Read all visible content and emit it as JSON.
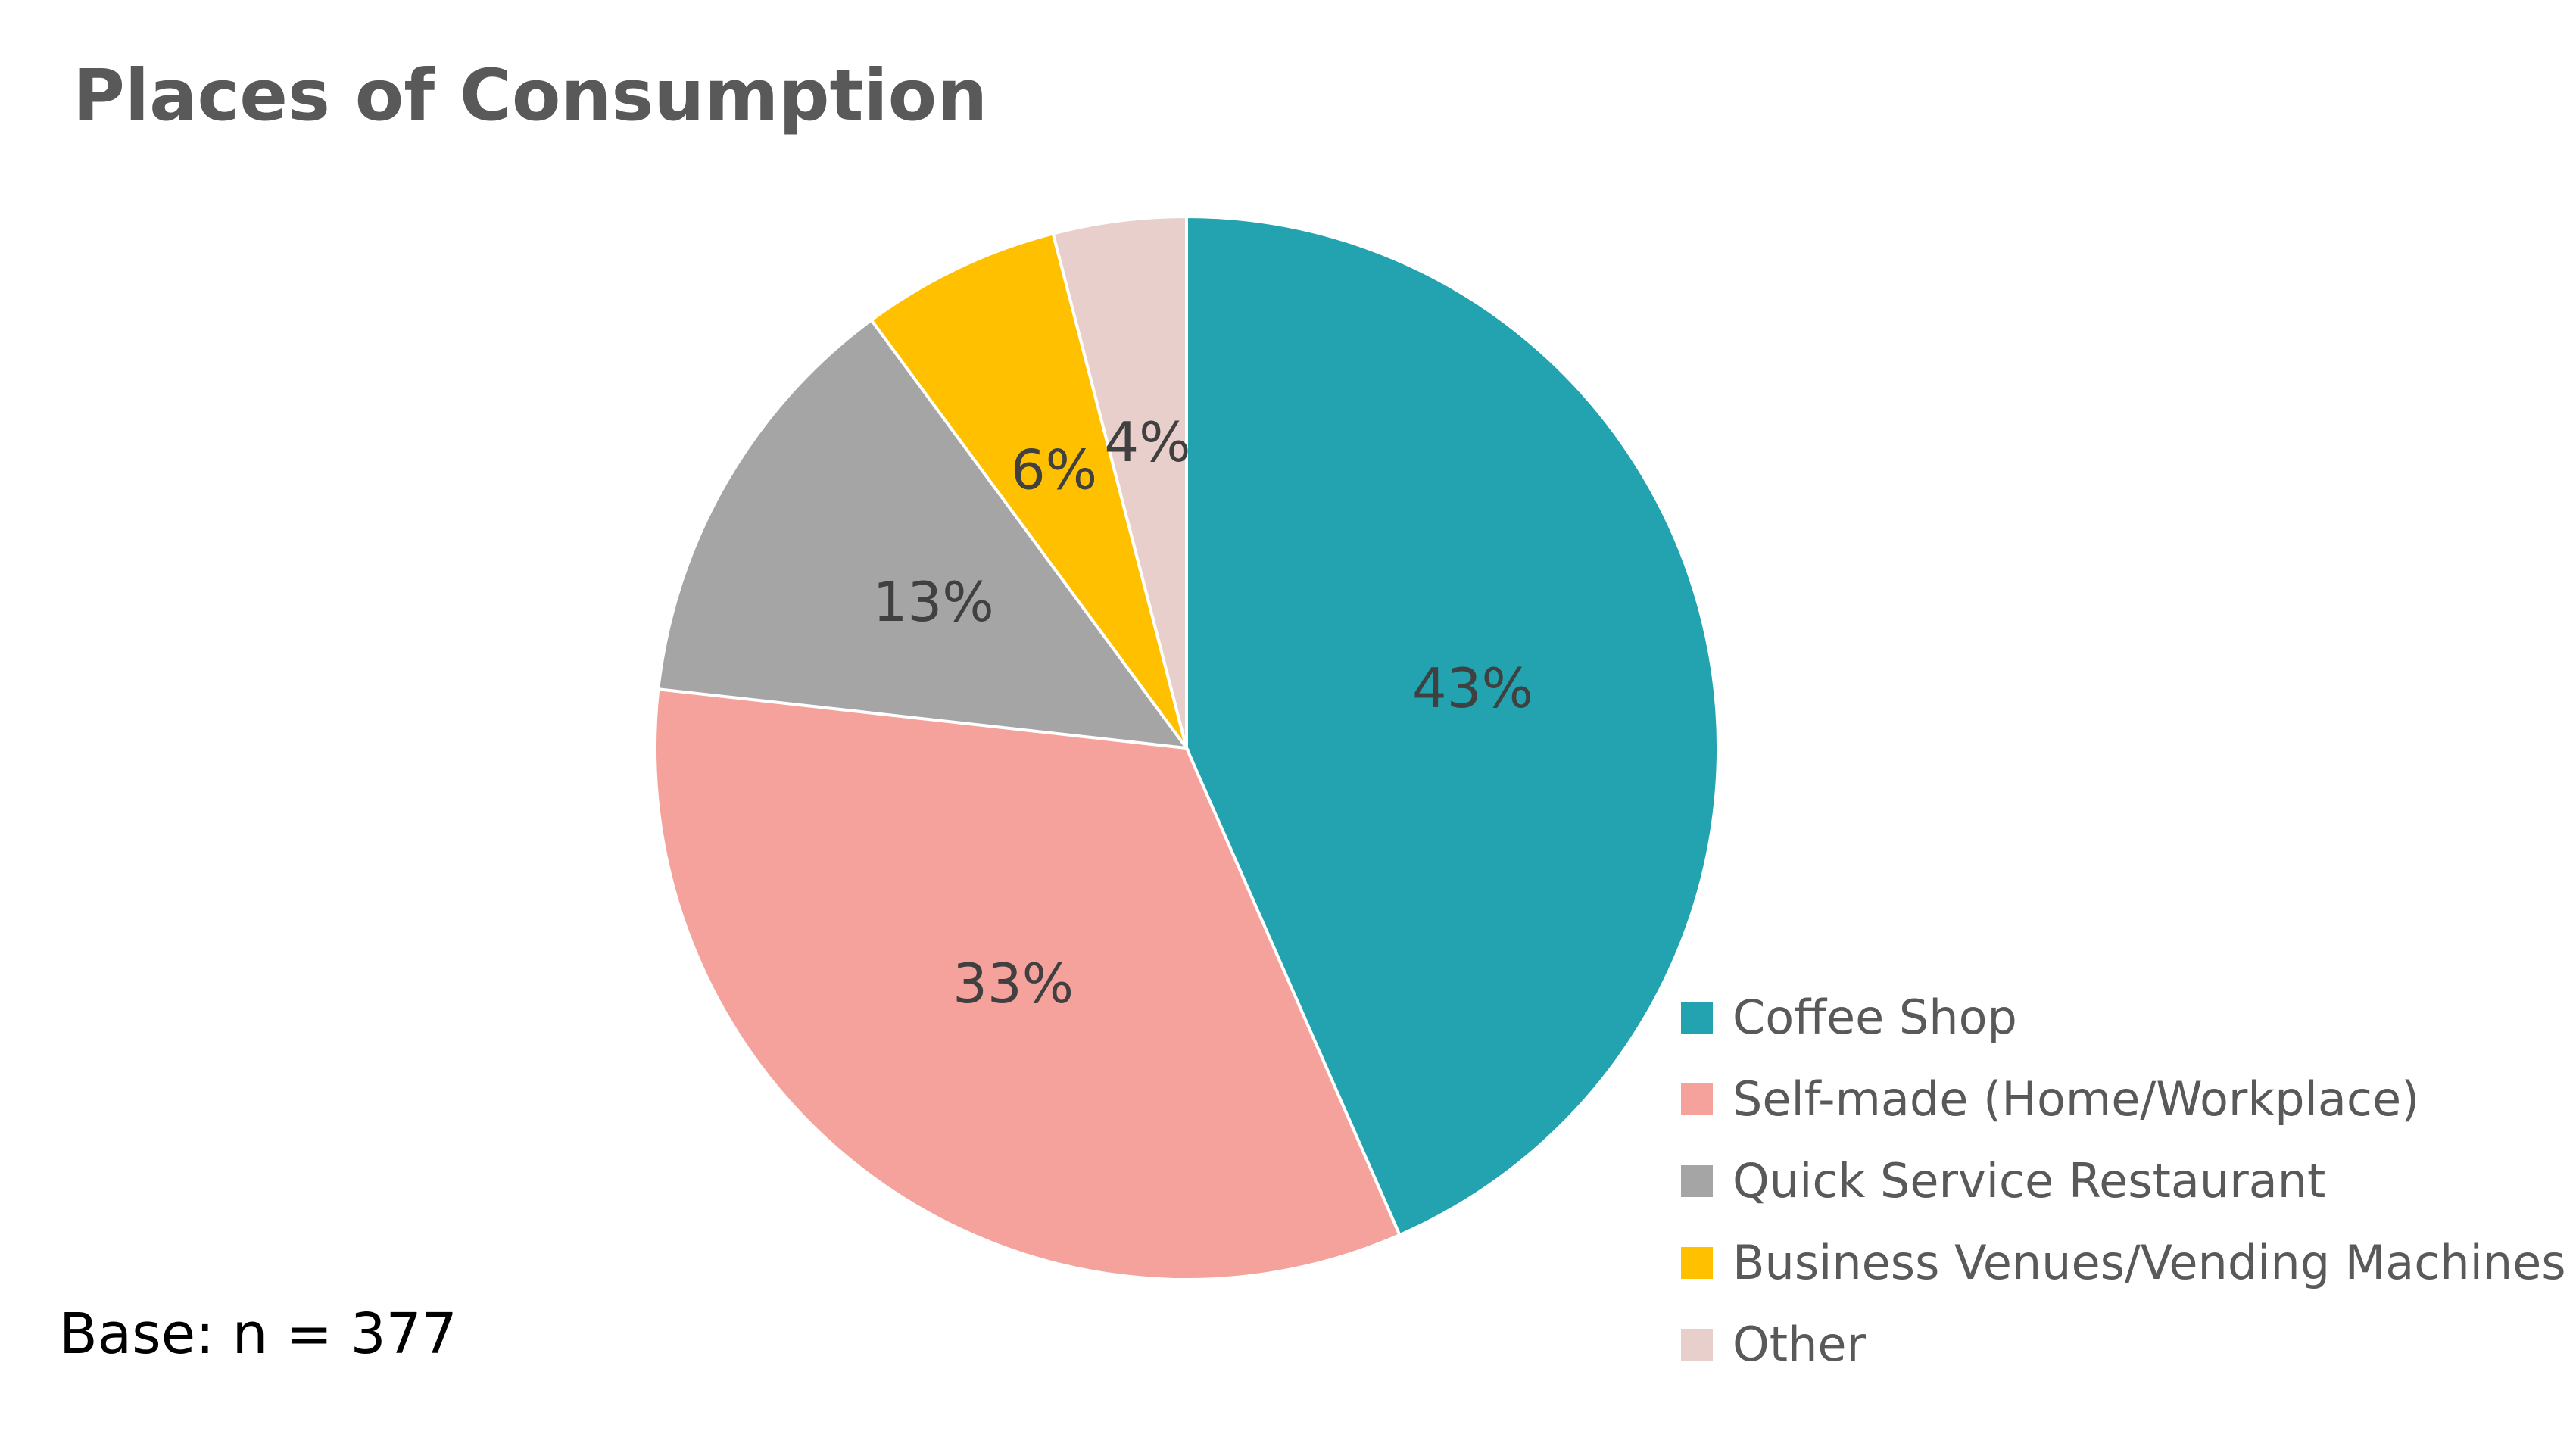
{
  "chart_data": {
    "type": "pie",
    "title": "Places of Consumption",
    "slices": [
      {
        "name": "Coffee Shop",
        "value": 43,
        "label": "43%",
        "color": "#23A3B0"
      },
      {
        "name": "Self-made (Home/Workplace)",
        "value": 33,
        "label": "33%",
        "color": "#F4A29B"
      },
      {
        "name": "Quick Service Restaurant",
        "value": 13,
        "label": "13%",
        "color": "#A5A5A5"
      },
      {
        "name": "Business Venues/Vending Machines",
        "value": 6,
        "label": "6%",
        "color": "#FFC000"
      },
      {
        "name": "Other",
        "value": 4,
        "label": "4%",
        "color": "#E8CFCB"
      }
    ],
    "legend": {
      "position": "bottom-right"
    }
  },
  "footnote": "Base: n = 377"
}
